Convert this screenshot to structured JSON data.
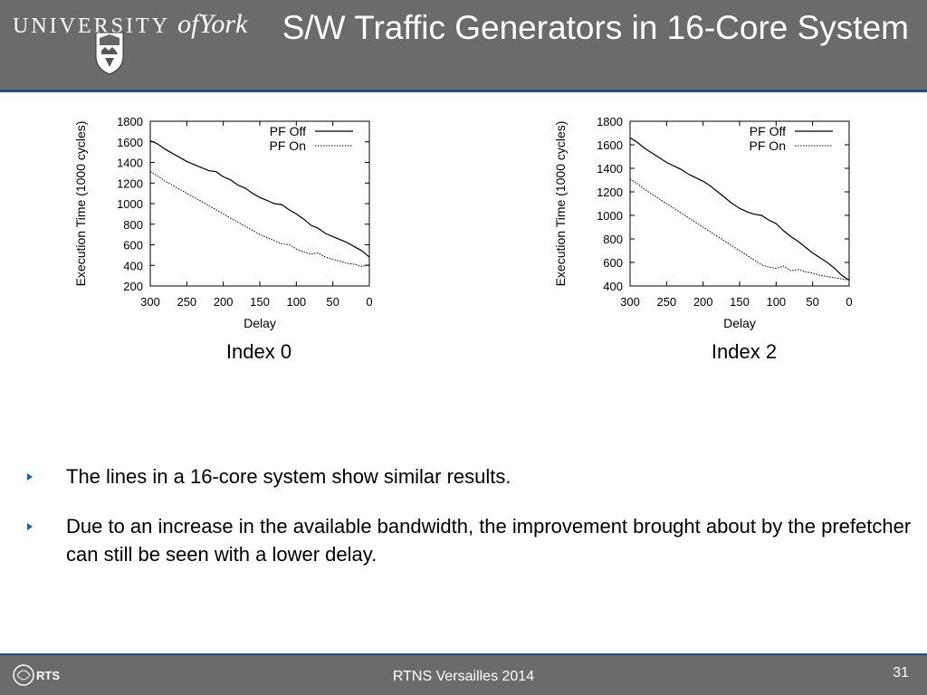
{
  "header": {
    "logo_text_main": "UNIVERSITY",
    "logo_text_of": "of",
    "logo_text_york": "York",
    "title": "S/W Traffic Generators in 16-Core System"
  },
  "chart_data": [
    {
      "type": "line",
      "caption": "Index 0",
      "xlabel": "Delay",
      "ylabel": "Execution Time (1000 cycles)",
      "xlim": [
        300,
        0
      ],
      "ylim": [
        200,
        1800
      ],
      "xticks": [
        300,
        250,
        200,
        150,
        100,
        50,
        0
      ],
      "yticks": [
        200,
        400,
        600,
        800,
        1000,
        1200,
        1400,
        1600,
        1800
      ],
      "legend_position": "top-right",
      "series": [
        {
          "name": "PF Off",
          "style": "solid",
          "x": [
            300,
            290,
            280,
            270,
            260,
            250,
            240,
            230,
            220,
            210,
            200,
            190,
            180,
            170,
            160,
            150,
            140,
            130,
            120,
            110,
            100,
            90,
            80,
            70,
            60,
            50,
            40,
            30,
            20,
            10,
            0
          ],
          "y": [
            1610,
            1580,
            1530,
            1490,
            1450,
            1410,
            1380,
            1350,
            1320,
            1310,
            1260,
            1230,
            1180,
            1150,
            1100,
            1060,
            1030,
            1000,
            990,
            940,
            900,
            850,
            790,
            760,
            710,
            680,
            650,
            620,
            580,
            540,
            480
          ]
        },
        {
          "name": "PF On",
          "style": "dotted",
          "x": [
            300,
            290,
            280,
            270,
            260,
            250,
            240,
            230,
            220,
            210,
            200,
            190,
            180,
            170,
            160,
            150,
            140,
            130,
            120,
            110,
            100,
            90,
            80,
            70,
            60,
            50,
            40,
            30,
            20,
            10,
            0
          ],
          "y": [
            1310,
            1270,
            1220,
            1180,
            1140,
            1100,
            1060,
            1020,
            980,
            940,
            900,
            860,
            820,
            780,
            740,
            700,
            670,
            640,
            610,
            600,
            560,
            530,
            510,
            520,
            480,
            460,
            440,
            420,
            410,
            390,
            410
          ]
        }
      ]
    },
    {
      "type": "line",
      "caption": "Index 2",
      "xlabel": "Delay",
      "ylabel": "Execution Time (1000 cycles)",
      "xlim": [
        300,
        0
      ],
      "ylim": [
        400,
        1800
      ],
      "xticks": [
        300,
        250,
        200,
        150,
        100,
        50,
        0
      ],
      "yticks": [
        400,
        600,
        800,
        1000,
        1200,
        1400,
        1600,
        1800
      ],
      "legend_position": "top-right",
      "series": [
        {
          "name": "PF Off",
          "style": "solid",
          "x": [
            300,
            290,
            280,
            270,
            260,
            250,
            240,
            230,
            220,
            210,
            200,
            190,
            180,
            170,
            160,
            150,
            140,
            130,
            120,
            110,
            100,
            90,
            80,
            70,
            60,
            50,
            40,
            30,
            20,
            10,
            0
          ],
          "y": [
            1660,
            1620,
            1570,
            1530,
            1490,
            1450,
            1420,
            1390,
            1350,
            1320,
            1290,
            1250,
            1200,
            1150,
            1100,
            1060,
            1030,
            1010,
            1000,
            960,
            930,
            870,
            820,
            780,
            730,
            680,
            640,
            600,
            550,
            490,
            450
          ]
        },
        {
          "name": "PF On",
          "style": "dotted",
          "x": [
            300,
            290,
            280,
            270,
            260,
            250,
            240,
            230,
            220,
            210,
            200,
            190,
            180,
            170,
            160,
            150,
            140,
            130,
            120,
            110,
            100,
            90,
            80,
            70,
            60,
            50,
            40,
            30,
            20,
            10,
            0
          ],
          "y": [
            1310,
            1270,
            1220,
            1180,
            1140,
            1100,
            1060,
            1020,
            980,
            940,
            900,
            860,
            820,
            780,
            740,
            700,
            660,
            620,
            580,
            560,
            550,
            570,
            530,
            540,
            520,
            510,
            490,
            480,
            470,
            460,
            450
          ]
        }
      ]
    }
  ],
  "bullets": [
    "The lines in a 16-core system show similar results.",
    "Due to an increase in the available bandwidth, the improvement brought about by the prefetcher can still be seen with a lower delay."
  ],
  "footer": {
    "logo_text": "RTS",
    "text": "RTNS Versailles 2014",
    "page_number": "31"
  },
  "colors": {
    "header_bg": "#6b6b6b",
    "accent": "#1f4e8c",
    "bullet": "#1f5fa8"
  }
}
